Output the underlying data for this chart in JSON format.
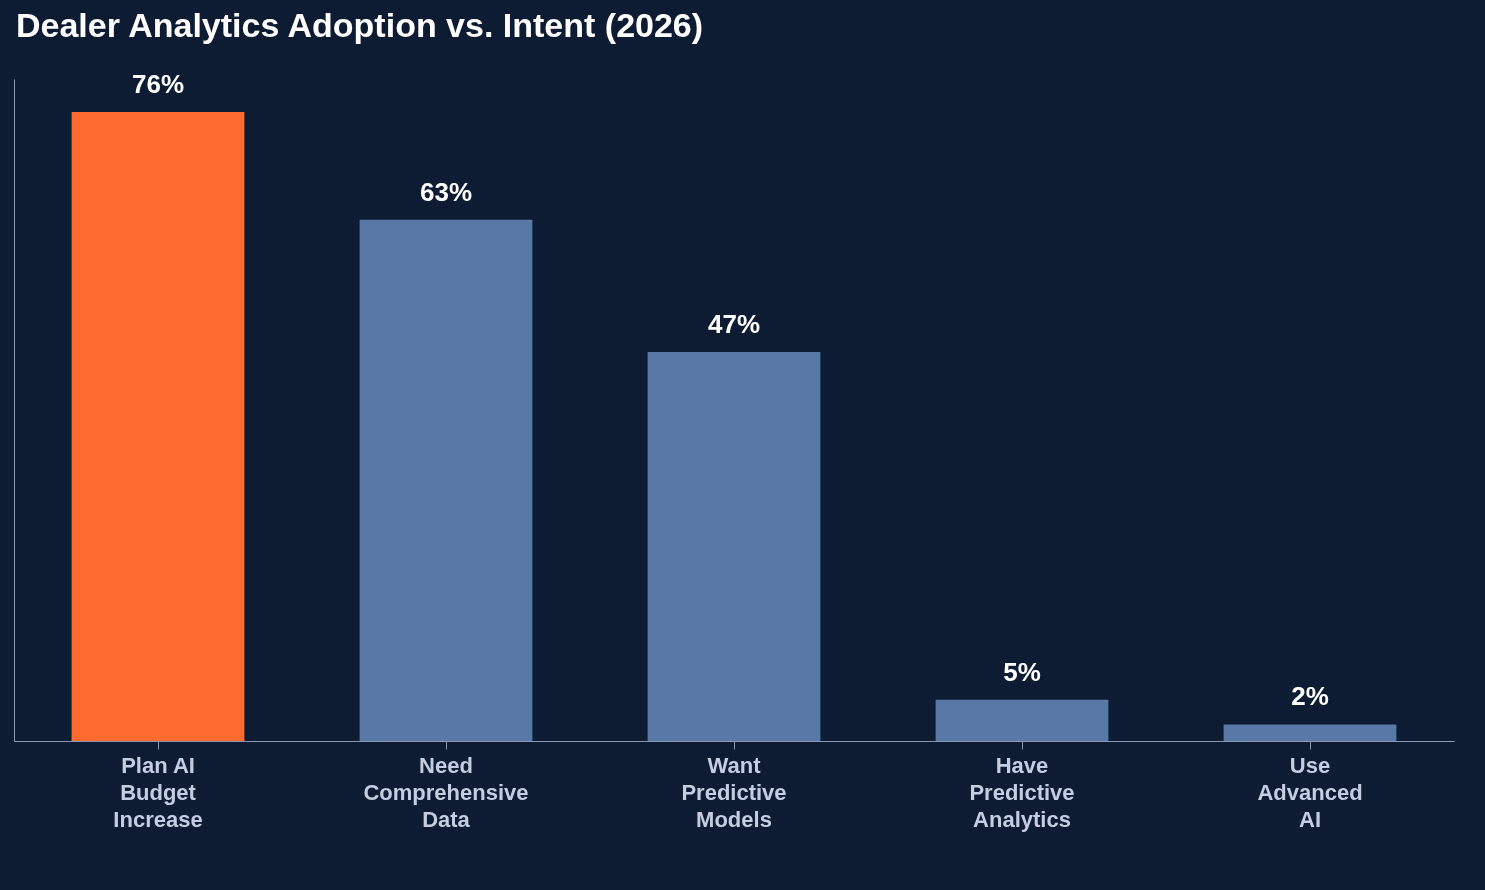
{
  "chart_data": {
    "type": "bar",
    "title": "Dealer Analytics Adoption vs. Intent (2026)",
    "categories": [
      "Plan AI Budget Increase",
      "Need Comprehensive Data",
      "Want Predictive Models",
      "Have Predictive Analytics",
      "Use Advanced AI"
    ],
    "values": [
      76,
      63,
      47,
      5,
      2
    ],
    "colors": [
      "#ff6b2c",
      "#5878a8",
      "#5878a8",
      "#5878a8",
      "#5878a8"
    ],
    "value_labels": [
      "76%",
      "63%",
      "47%",
      "5%",
      "2%"
    ],
    "ylim": [
      0,
      80
    ],
    "tick_labels": "x",
    "grid": false
  }
}
